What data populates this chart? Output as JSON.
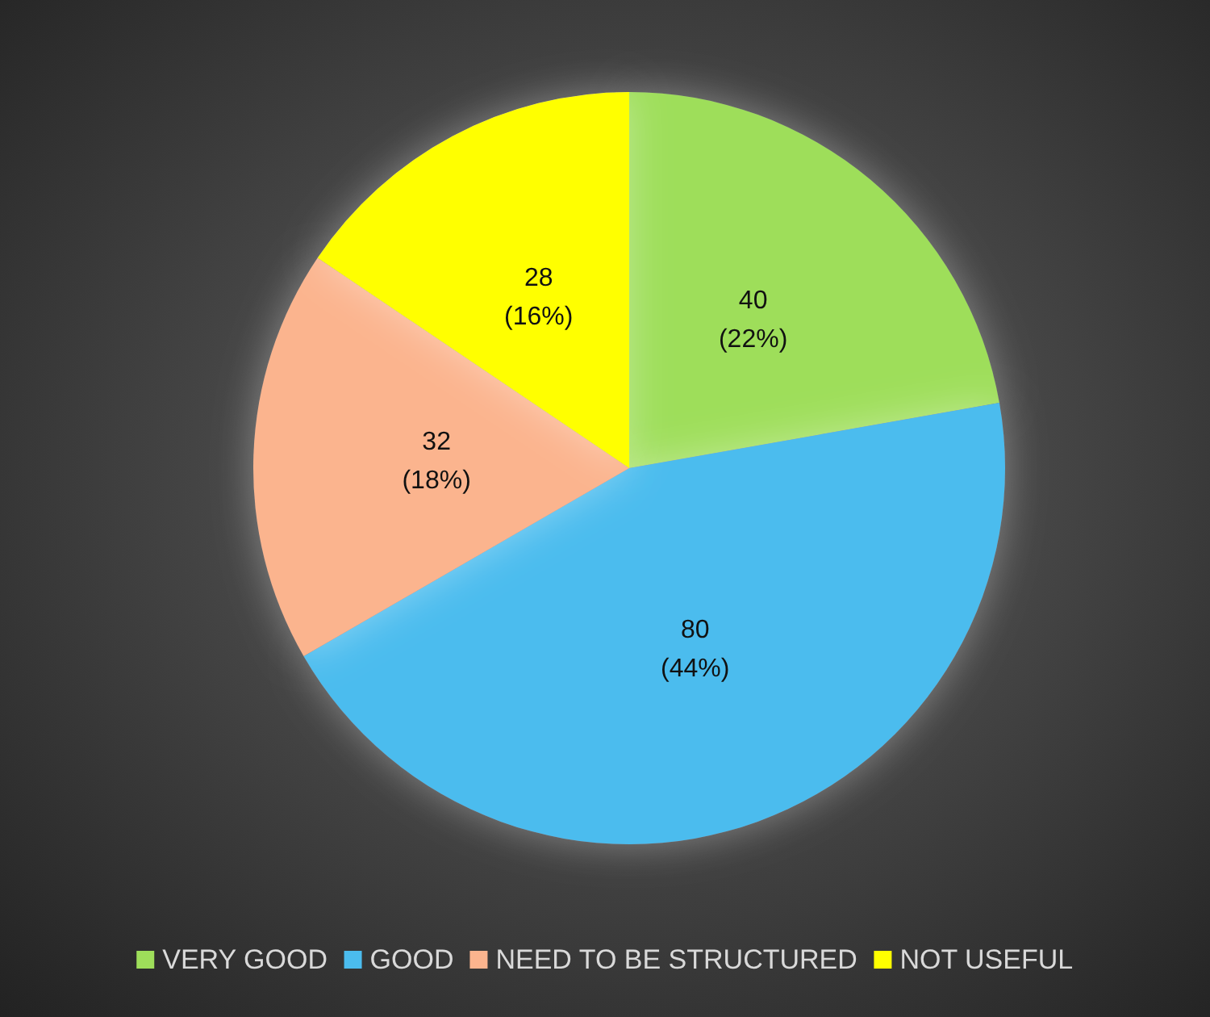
{
  "chart_data": {
    "type": "pie",
    "categories": [
      "VERY GOOD",
      "GOOD",
      "NEED TO BE STRUCTURED",
      "NOT USEFUL"
    ],
    "values": [
      40,
      80,
      32,
      28
    ],
    "colors": [
      "#9ede5a",
      "#4bbcee",
      "#fbb48e",
      "#ffff00"
    ],
    "value_labels": [
      "40\n(22%)",
      "80\n(44%)",
      "32\n(18%)",
      "28\n(16%)"
    ],
    "legend": "bottom"
  }
}
